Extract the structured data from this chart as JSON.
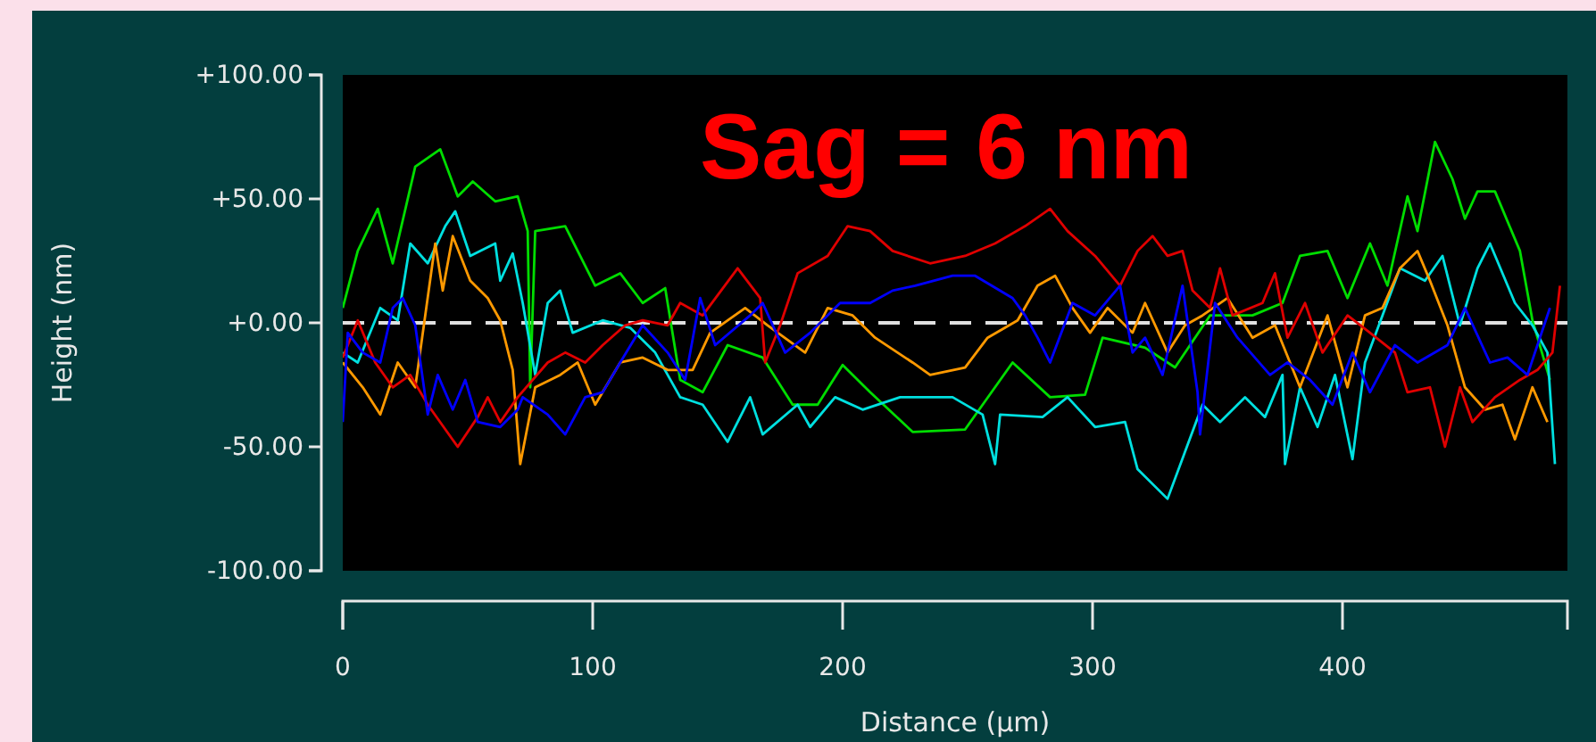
{
  "chart_data": {
    "type": "line",
    "xlabel": "Distance (µm)",
    "ylabel": "Height (nm)",
    "annotations": [
      "Sag = 6 nm"
    ],
    "xlim": [
      0,
      490
    ],
    "ylim": [
      -100,
      100
    ],
    "xticks": [
      0,
      100,
      200,
      300,
      400
    ],
    "yticks": [
      {
        "value": -100,
        "label": "-100.00"
      },
      {
        "value": -50,
        "label": "-50.00"
      },
      {
        "value": 0,
        "label": "+0.00"
      },
      {
        "value": 50,
        "label": "+50.00"
      },
      {
        "value": 100,
        "label": "+100.00"
      }
    ],
    "grid": false,
    "marker": "none",
    "line_style": "solid",
    "ref_lines": [
      {
        "axis": "y",
        "value": 0,
        "label": null,
        "color": "#e0e0e0",
        "line_style": "dashed"
      }
    ],
    "series": [
      {
        "color": "#00dd00",
        "x": [
          0,
          6,
          14,
          20,
          29,
          39,
          46,
          52,
          61,
          70,
          74,
          75,
          77,
          89,
          101,
          111,
          120,
          129,
          135,
          144,
          154,
          168,
          180,
          190,
          200,
          211,
          228,
          249,
          268,
          283,
          297,
          304,
          321,
          333,
          347,
          364,
          376,
          383,
          394,
          402,
          411,
          418,
          426,
          430,
          437,
          444,
          449,
          454,
          461,
          471,
          476,
          483
        ],
        "values": [
          6,
          29,
          46,
          24,
          63,
          70,
          51,
          57,
          49,
          51,
          37,
          -26,
          37,
          39,
          15,
          20,
          8,
          14,
          -23,
          -28,
          -9,
          -14,
          -33,
          -33,
          -17,
          -28,
          -44,
          -43,
          -16,
          -30,
          -29,
          -6,
          -10,
          -18,
          3,
          3,
          8,
          27,
          29,
          10,
          32,
          15,
          51,
          37,
          73,
          58,
          42,
          53,
          53,
          29,
          1,
          -23
        ]
      },
      {
        "color": "#00e0e0",
        "x": [
          0,
          6,
          15,
          22,
          27,
          34,
          41,
          45,
          51,
          61,
          63,
          68,
          72,
          77,
          82,
          87,
          92,
          104,
          115,
          125,
          135,
          144,
          154,
          163,
          168,
          182,
          187,
          197,
          208,
          223,
          244,
          256,
          261,
          263,
          280,
          290,
          301,
          313,
          318,
          330,
          337,
          344,
          351,
          361,
          369,
          376,
          377,
          383,
          390,
          397,
          404,
          409,
          416,
          423,
          433,
          440,
          447,
          454,
          459,
          469,
          476,
          482,
          485
        ],
        "values": [
          -12,
          -16,
          6,
          1,
          32,
          24,
          39,
          45,
          27,
          32,
          17,
          28,
          8,
          -21,
          8,
          13,
          -4,
          1,
          -2,
          -12,
          -30,
          -33,
          -48,
          -30,
          -45,
          -33,
          -42,
          -30,
          -35,
          -30,
          -30,
          -37,
          -57,
          -37,
          -38,
          -30,
          -42,
          -40,
          -59,
          -71,
          -52,
          -33,
          -40,
          -30,
          -38,
          -21,
          -57,
          -26,
          -42,
          -21,
          -55,
          -16,
          3,
          22,
          17,
          27,
          -1,
          22,
          32,
          8,
          -1,
          -12,
          -57
        ]
      },
      {
        "color": "#ff9900",
        "x": [
          0,
          8,
          15,
          22,
          29,
          37,
          40,
          44,
          51,
          58,
          63,
          68,
          71,
          77,
          87,
          94,
          101,
          111,
          120,
          130,
          140,
          147,
          161,
          170,
          185,
          194,
          204,
          213,
          228,
          235,
          249,
          258,
          270,
          278,
          285,
          292,
          299,
          306,
          316,
          321,
          330,
          337,
          344,
          354,
          364,
          373,
          383,
          394,
          402,
          409,
          416,
          423,
          430,
          435,
          442,
          449,
          457,
          464,
          469,
          476,
          482
        ],
        "values": [
          -16,
          -26,
          -37,
          -16,
          -26,
          32,
          13,
          35,
          17,
          10,
          1,
          -19,
          -57,
          -26,
          -21,
          -16,
          -33,
          -16,
          -14,
          -19,
          -19,
          -4,
          6,
          -1,
          -12,
          6,
          3,
          -6,
          -16,
          -21,
          -18,
          -6,
          1,
          15,
          19,
          6,
          -4,
          6,
          -4,
          8,
          -12,
          -1,
          3,
          10,
          -6,
          -1,
          -26,
          3,
          -26,
          3,
          6,
          22,
          29,
          17,
          -1,
          -26,
          -35,
          -33,
          -47,
          -26,
          -40
        ]
      },
      {
        "color": "#e00000",
        "x": [
          0,
          6,
          13,
          20,
          27,
          34,
          46,
          54,
          58,
          63,
          70,
          82,
          89,
          97,
          104,
          113,
          120,
          130,
          135,
          144,
          158,
          167,
          169,
          175,
          182,
          194,
          202,
          211,
          220,
          235,
          249,
          261,
          273,
          283,
          290,
          301,
          311,
          318,
          324,
          330,
          336,
          340,
          347,
          351,
          356,
          368,
          373,
          378,
          385,
          392,
          402,
          411,
          421,
          426,
          435,
          441,
          447,
          452,
          461,
          471,
          478,
          484,
          487
        ],
        "values": [
          -14,
          1,
          -16,
          -26,
          -21,
          -33,
          -50,
          -38,
          -30,
          -40,
          -30,
          -16,
          -12,
          -16,
          -9,
          -1,
          1,
          -1,
          8,
          3,
          22,
          10,
          -16,
          -1,
          20,
          27,
          39,
          37,
          29,
          24,
          27,
          32,
          39,
          46,
          37,
          27,
          15,
          29,
          35,
          27,
          29,
          13,
          6,
          22,
          3,
          8,
          20,
          -6,
          8,
          -12,
          3,
          -4,
          -12,
          -28,
          -26,
          -50,
          -26,
          -40,
          -30,
          -23,
          -19,
          -12,
          15
        ]
      },
      {
        "color": "#0000ff",
        "x": [
          0,
          2,
          8,
          15,
          20,
          24,
          29,
          34,
          38,
          44,
          49,
          54,
          63,
          70,
          72,
          82,
          89,
          97,
          104,
          111,
          120,
          130,
          137,
          143,
          149,
          163,
          168,
          177,
          187,
          199,
          211,
          220,
          229,
          244,
          253,
          268,
          273,
          278,
          283,
          292,
          301,
          311,
          316,
          321,
          328,
          336,
          342,
          343,
          349,
          358,
          371,
          378,
          387,
          396,
          404,
          411,
          421,
          430,
          442,
          449,
          459,
          466,
          474,
          483
        ],
        "values": [
          -40,
          -4,
          -12,
          -16,
          6,
          10,
          -1,
          -37,
          -21,
          -35,
          -23,
          -40,
          -42,
          -35,
          -30,
          -37,
          -45,
          -30,
          -28,
          -16,
          -1,
          -12,
          -23,
          10,
          -9,
          3,
          8,
          -12,
          -4,
          8,
          8,
          13,
          15,
          19,
          19,
          10,
          3,
          -6,
          -16,
          8,
          3,
          15,
          -12,
          -6,
          -21,
          15,
          -28,
          -45,
          8,
          -6,
          -21,
          -16,
          -23,
          -33,
          -12,
          -28,
          -9,
          -16,
          -9,
          6,
          -16,
          -14,
          -21,
          6
        ]
      }
    ]
  }
}
